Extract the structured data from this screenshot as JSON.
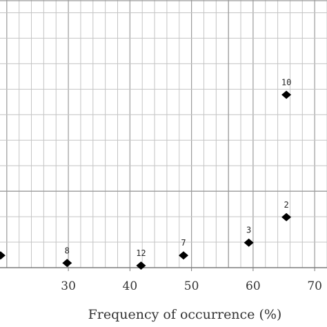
{
  "chart_data": {
    "type": "scatter",
    "title": "",
    "xlabel": "Frequency of occurrence (%)",
    "ylabel": "",
    "xlim": [
      18.9,
      72.0
    ],
    "ylim": [
      0,
      10.5
    ],
    "x_ticks": [
      30,
      40,
      50,
      60,
      70
    ],
    "x_minor_step": 2,
    "y_minor_step": 1,
    "grid": true,
    "legend": "none",
    "marker": "diamond",
    "marker_color": "#000000",
    "points": [
      {
        "label": "",
        "x": 19.0,
        "y": 0.4
      },
      {
        "label": "8",
        "x": 29.8,
        "y": 0.1
      },
      {
        "label": "12",
        "x": 41.8,
        "y": 0.0
      },
      {
        "label": "7",
        "x": 48.7,
        "y": 0.4
      },
      {
        "label": "3",
        "x": 59.3,
        "y": 0.9
      },
      {
        "label": "2",
        "x": 65.4,
        "y": 1.9
      },
      {
        "label": "10",
        "x": 65.4,
        "y": 6.7
      }
    ]
  }
}
